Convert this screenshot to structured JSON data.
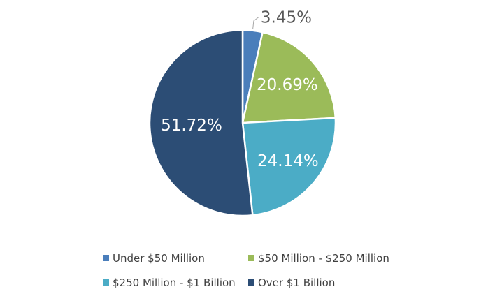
{
  "chart_data": {
    "type": "pie",
    "title": "",
    "categories": [
      "Under $50 Million",
      "$50 Million - $250 Million",
      "$250 Million - $1 Billion",
      "Over $1 Billion"
    ],
    "values": [
      3.45,
      20.69,
      24.14,
      51.72
    ],
    "data_labels": [
      "3.45%",
      "20.69%",
      "24.14%",
      "51.72%"
    ],
    "colors": [
      "#4a7ebb",
      "#9bbb59",
      "#4bacc6",
      "#2c4d75"
    ],
    "label_colors": [
      "#595959",
      "#ffffff",
      "#ffffff",
      "#ffffff"
    ],
    "start_angle_deg": 0,
    "direction": "clockwise",
    "legend_position": "bottom",
    "slice_border_color": "#ffffff"
  }
}
